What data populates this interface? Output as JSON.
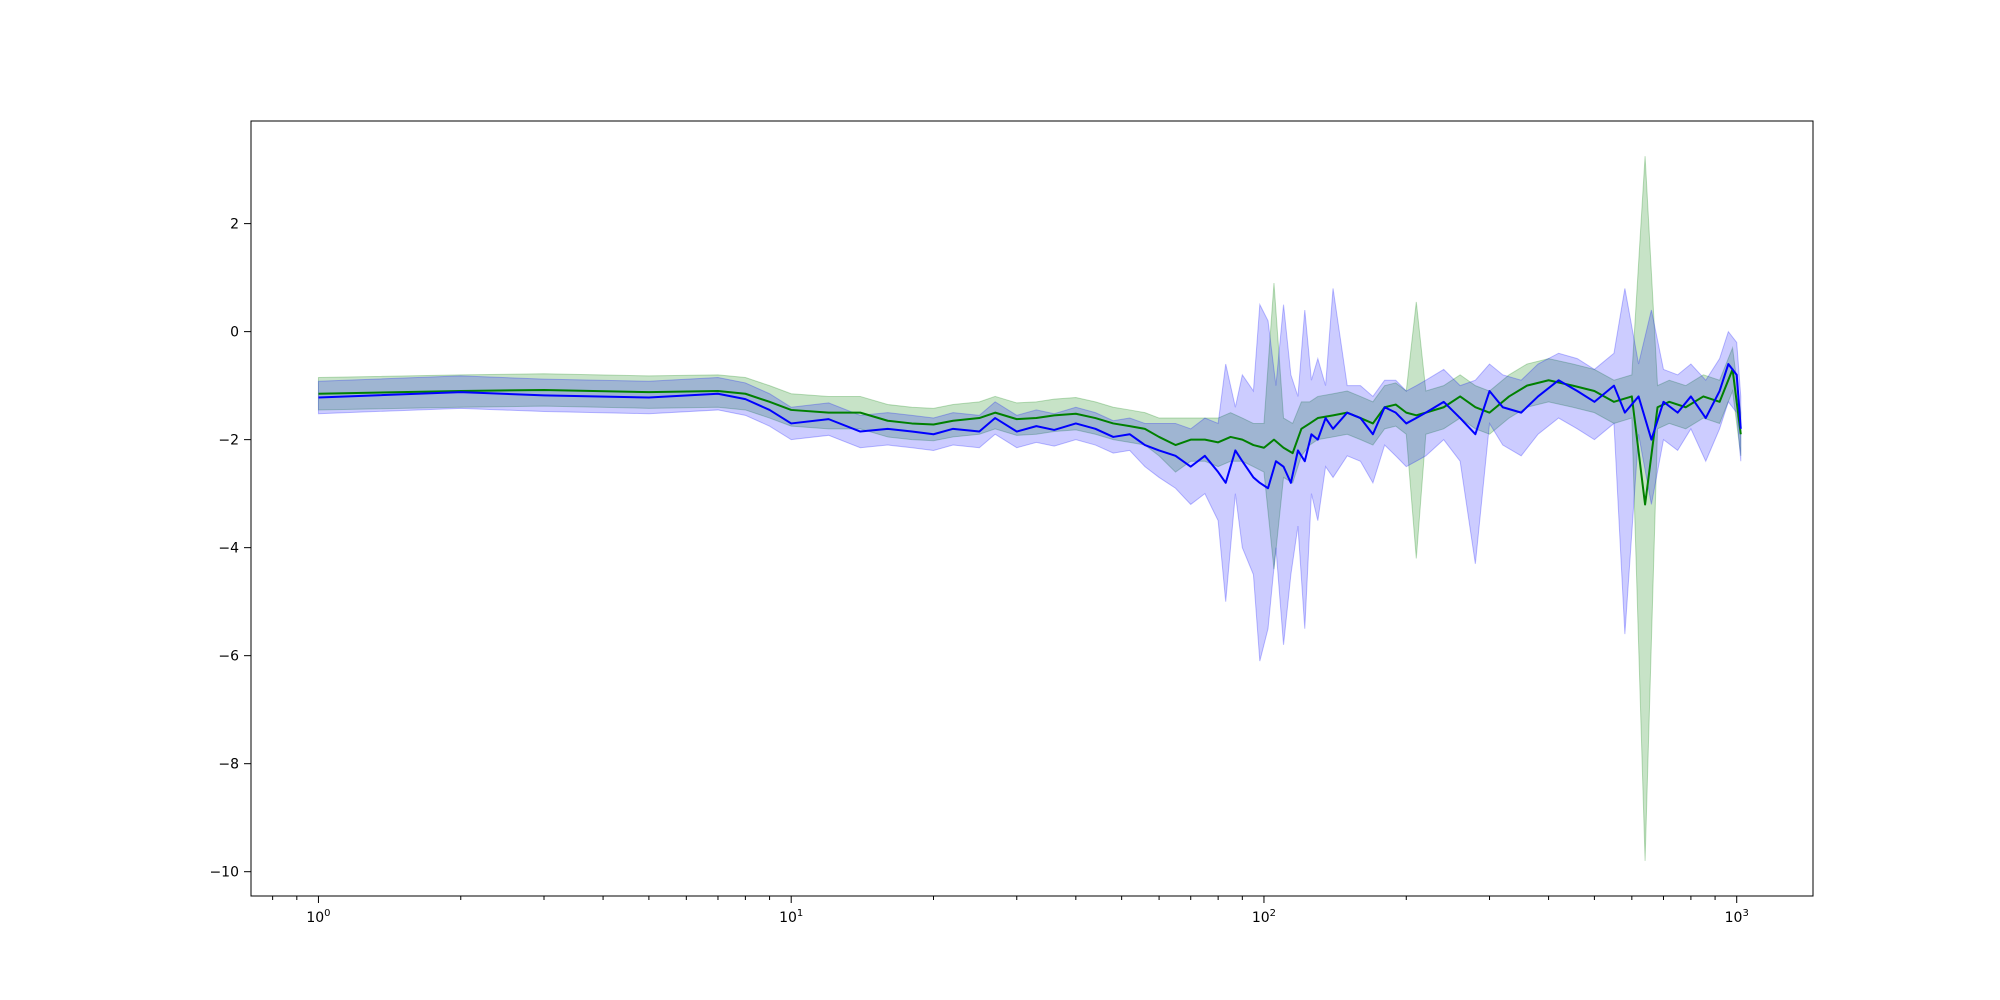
{
  "chart_data": {
    "type": "line",
    "title": "",
    "xlabel": "",
    "ylabel": "",
    "xscale": "log",
    "xlim": [
      0.72,
      1450
    ],
    "ylim": [
      -10.45,
      3.9
    ],
    "grid": false,
    "legend": "none",
    "colors": {
      "green_line": "#008000",
      "green_band": "#008000",
      "blue_line": "#0000ff",
      "blue_band": "#0000ff",
      "axes": "#000000",
      "background": "#ffffff"
    },
    "x_ticks": [
      {
        "base": "10",
        "exp": "0",
        "value": 1
      },
      {
        "base": "10",
        "exp": "1",
        "value": 10
      },
      {
        "base": "10",
        "exp": "2",
        "value": 100
      },
      {
        "base": "10",
        "exp": "3",
        "value": 1000
      }
    ],
    "y_ticks": [
      {
        "label": "2",
        "value": 2
      },
      {
        "label": "0",
        "value": 0
      },
      {
        "label": "−2",
        "value": -2
      },
      {
        "label": "−4",
        "value": -4
      },
      {
        "label": "−6",
        "value": -6
      },
      {
        "label": "−8",
        "value": -8
      },
      {
        "label": "−10",
        "value": -10
      }
    ],
    "series": [
      {
        "color": "#008000",
        "x": [
          1,
          2,
          3,
          5,
          7,
          8,
          9,
          10,
          12,
          14,
          16,
          18,
          20,
          22,
          25,
          27,
          30,
          33,
          36,
          40,
          44,
          48,
          52,
          56,
          60,
          65,
          70,
          75,
          80,
          85,
          90,
          95,
          100,
          105,
          110,
          115,
          120,
          125,
          130,
          140,
          150,
          160,
          170,
          180,
          190,
          200,
          210,
          220,
          240,
          260,
          280,
          300,
          330,
          360,
          400,
          450,
          500,
          550,
          600,
          640,
          680,
          720,
          780,
          850,
          920,
          980,
          1020
        ],
        "y": [
          -1.15,
          -1.1,
          -1.08,
          -1.12,
          -1.1,
          -1.15,
          -1.3,
          -1.45,
          -1.5,
          -1.5,
          -1.65,
          -1.7,
          -1.72,
          -1.65,
          -1.6,
          -1.5,
          -1.62,
          -1.6,
          -1.55,
          -1.52,
          -1.6,
          -1.7,
          -1.75,
          -1.8,
          -1.95,
          -2.1,
          -2.0,
          -2.0,
          -2.05,
          -1.95,
          -2.0,
          -2.1,
          -2.15,
          -2.0,
          -2.15,
          -2.25,
          -1.8,
          -1.7,
          -1.6,
          -1.55,
          -1.5,
          -1.6,
          -1.7,
          -1.4,
          -1.35,
          -1.5,
          -1.55,
          -1.5,
          -1.4,
          -1.2,
          -1.4,
          -1.5,
          -1.2,
          -1.0,
          -0.9,
          -1.0,
          -1.1,
          -1.3,
          -1.2,
          -3.2,
          -1.4,
          -1.3,
          -1.4,
          -1.2,
          -1.3,
          -0.7,
          -1.9
        ],
        "lower": [
          -1.45,
          -1.4,
          -1.38,
          -1.42,
          -1.4,
          -1.45,
          -1.6,
          -1.75,
          -1.8,
          -1.8,
          -1.95,
          -2.0,
          -2.02,
          -1.95,
          -1.9,
          -1.8,
          -1.92,
          -1.9,
          -1.85,
          -1.82,
          -1.9,
          -2.0,
          -2.05,
          -2.1,
          -2.3,
          -2.6,
          -2.4,
          -2.4,
          -2.5,
          -2.4,
          -2.4,
          -2.5,
          -2.6,
          -4.4,
          -2.7,
          -2.8,
          -2.3,
          -2.1,
          -2.0,
          -1.95,
          -1.9,
          -2.0,
          -2.1,
          -1.8,
          -1.75,
          -1.9,
          -4.2,
          -1.9,
          -1.8,
          -1.6,
          -1.8,
          -1.9,
          -1.6,
          -1.4,
          -1.3,
          -1.4,
          -1.5,
          -1.7,
          -1.6,
          -9.8,
          -1.8,
          -1.7,
          -1.8,
          -1.6,
          -1.7,
          -1.1,
          -2.3
        ],
        "upper": [
          -0.85,
          -0.8,
          -0.78,
          -0.82,
          -0.8,
          -0.85,
          -1.0,
          -1.15,
          -1.2,
          -1.2,
          -1.35,
          -1.4,
          -1.42,
          -1.35,
          -1.3,
          -1.2,
          -1.32,
          -1.3,
          -1.25,
          -1.22,
          -1.3,
          -1.4,
          -1.45,
          -1.5,
          -1.6,
          -1.6,
          -1.6,
          -1.6,
          -1.6,
          -1.5,
          -1.6,
          -1.7,
          -1.7,
          0.9,
          -1.6,
          -1.7,
          -1.3,
          -1.3,
          -1.2,
          -1.15,
          -1.1,
          -1.2,
          -1.3,
          -1.0,
          -0.95,
          -1.1,
          0.55,
          -1.1,
          -1.0,
          -0.8,
          -1.0,
          -1.1,
          -0.8,
          -0.6,
          -0.5,
          -0.6,
          -0.7,
          -0.9,
          -0.8,
          3.25,
          -1.0,
          -0.9,
          -1.0,
          -0.8,
          -0.9,
          -0.3,
          -1.5
        ]
      },
      {
        "color": "#0000ff",
        "x": [
          1,
          2,
          3,
          5,
          7,
          8,
          9,
          10,
          12,
          14,
          16,
          18,
          20,
          22,
          25,
          27,
          30,
          33,
          36,
          40,
          44,
          48,
          52,
          56,
          60,
          65,
          70,
          75,
          80,
          83,
          87,
          90,
          95,
          98,
          102,
          106,
          110,
          114,
          118,
          122,
          126,
          130,
          135,
          140,
          150,
          160,
          170,
          180,
          190,
          200,
          210,
          220,
          240,
          260,
          280,
          300,
          320,
          350,
          380,
          420,
          460,
          500,
          550,
          580,
          620,
          660,
          700,
          750,
          800,
          860,
          920,
          960,
          1000,
          1020
        ],
        "y": [
          -1.22,
          -1.12,
          -1.18,
          -1.22,
          -1.15,
          -1.25,
          -1.45,
          -1.7,
          -1.62,
          -1.85,
          -1.8,
          -1.85,
          -1.9,
          -1.8,
          -1.85,
          -1.6,
          -1.85,
          -1.75,
          -1.82,
          -1.7,
          -1.8,
          -1.95,
          -1.9,
          -2.1,
          -2.2,
          -2.3,
          -2.5,
          -2.3,
          -2.6,
          -2.8,
          -2.2,
          -2.4,
          -2.7,
          -2.8,
          -2.9,
          -2.4,
          -2.5,
          -2.8,
          -2.2,
          -2.4,
          -1.9,
          -2.0,
          -1.6,
          -1.8,
          -1.5,
          -1.6,
          -1.9,
          -1.4,
          -1.5,
          -1.7,
          -1.6,
          -1.5,
          -1.3,
          -1.6,
          -1.9,
          -1.1,
          -1.4,
          -1.5,
          -1.2,
          -0.9,
          -1.1,
          -1.3,
          -1.0,
          -1.5,
          -1.2,
          -2.0,
          -1.3,
          -1.5,
          -1.2,
          -1.6,
          -1.1,
          -0.6,
          -0.8,
          -1.8
        ],
        "lower": [
          -1.52,
          -1.42,
          -1.48,
          -1.52,
          -1.45,
          -1.55,
          -1.75,
          -2.0,
          -1.92,
          -2.15,
          -2.1,
          -2.15,
          -2.2,
          -2.1,
          -2.15,
          -1.9,
          -2.15,
          -2.05,
          -2.12,
          -2.0,
          -2.1,
          -2.25,
          -2.2,
          -2.5,
          -2.7,
          -2.9,
          -3.2,
          -3.0,
          -3.5,
          -5.0,
          -3.0,
          -4.0,
          -4.5,
          -6.1,
          -5.5,
          -4.0,
          -5.8,
          -4.5,
          -3.6,
          -5.5,
          -3.0,
          -3.5,
          -2.5,
          -2.7,
          -2.3,
          -2.4,
          -2.8,
          -2.1,
          -2.3,
          -2.5,
          -2.4,
          -2.3,
          -2.0,
          -2.4,
          -4.3,
          -1.7,
          -2.1,
          -2.3,
          -1.9,
          -1.6,
          -1.8,
          -2.0,
          -1.7,
          -5.6,
          -1.9,
          -3.2,
          -2.0,
          -2.2,
          -1.8,
          -2.4,
          -1.8,
          -1.3,
          -1.5,
          -2.4
        ],
        "upper": [
          -0.92,
          -0.82,
          -0.88,
          -0.92,
          -0.85,
          -0.95,
          -1.15,
          -1.4,
          -1.32,
          -1.55,
          -1.5,
          -1.55,
          -1.6,
          -1.5,
          -1.55,
          -1.3,
          -1.55,
          -1.45,
          -1.52,
          -1.4,
          -1.5,
          -1.65,
          -1.6,
          -1.7,
          -1.7,
          -1.7,
          -1.8,
          -1.6,
          -1.7,
          -0.6,
          -1.4,
          -0.8,
          -1.1,
          0.5,
          0.2,
          -1.0,
          0.5,
          -0.8,
          -1.2,
          0.4,
          -0.9,
          -0.5,
          -1.0,
          0.8,
          -1.0,
          -1.0,
          -1.2,
          -0.9,
          -0.9,
          -1.1,
          -1.0,
          -0.9,
          -0.7,
          -1.0,
          -0.9,
          -0.6,
          -0.8,
          -0.9,
          -0.6,
          -0.4,
          -0.5,
          -0.7,
          -0.4,
          0.8,
          -0.6,
          0.4,
          -0.7,
          -0.8,
          -0.6,
          -0.9,
          -0.5,
          0.0,
          -0.2,
          -1.2
        ]
      }
    ]
  }
}
